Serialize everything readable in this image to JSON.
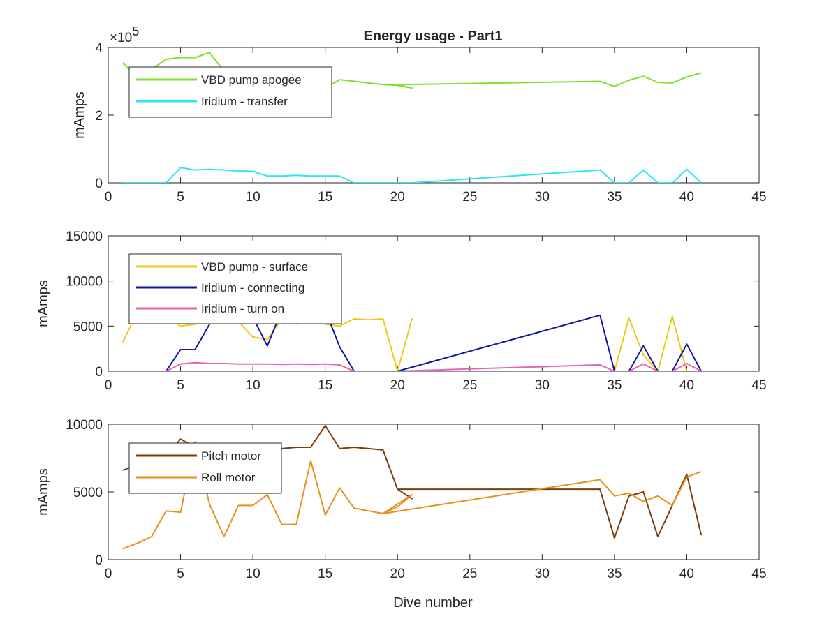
{
  "figure": {
    "title": "Energy usage - Part1",
    "xlabel": "Dive number"
  },
  "chart_data": [
    {
      "type": "line",
      "title": "Energy usage - Part1",
      "xlabel": "",
      "ylabel": "mAmps",
      "xlim": [
        0,
        45
      ],
      "ylim": [
        0,
        400000
      ],
      "xticks": [
        "0",
        "5",
        "10",
        "15",
        "20",
        "25",
        "30",
        "35",
        "40",
        "45"
      ],
      "yticks": [
        "0",
        "2",
        "4"
      ],
      "y_exponent_label": "×10",
      "y_exponent_value": "5",
      "legend_position": "top-left",
      "series": [
        {
          "name": "VBD pump apogee",
          "color": "#7ee12e",
          "x": [
            1,
            2,
            3,
            4,
            5,
            6,
            7,
            8,
            9,
            10,
            11,
            12,
            13,
            14,
            15,
            16,
            17,
            18,
            19,
            20,
            21,
            20,
            34,
            35,
            36,
            37,
            38,
            39,
            40,
            41
          ],
          "y": [
            355000,
            310000,
            335000,
            365000,
            370000,
            370000,
            385000,
            330000,
            320000,
            300000,
            295000,
            290000,
            280000,
            275000,
            280000,
            305000,
            300000,
            295000,
            290000,
            288000,
            280000,
            290000,
            300000,
            285000,
            303000,
            315000,
            297000,
            295000,
            313000,
            325000
          ]
        },
        {
          "name": "Iridium - transfer",
          "color": "#2ee6f0",
          "x": [
            1,
            2,
            3,
            4,
            5,
            6,
            7,
            8,
            9,
            10,
            11,
            12,
            13,
            14,
            15,
            16,
            17,
            18,
            19,
            20,
            21,
            34,
            35,
            36,
            37,
            38,
            39,
            40,
            41
          ],
          "y": [
            0,
            0,
            0,
            0,
            45000,
            38000,
            40000,
            38000,
            35000,
            34000,
            20000,
            20000,
            22000,
            20000,
            20000,
            20000,
            0,
            0,
            0,
            0,
            0,
            38000,
            0,
            0,
            38000,
            0,
            0,
            40000,
            0
          ]
        }
      ]
    },
    {
      "type": "line",
      "title": "",
      "xlabel": "",
      "ylabel": "mAmps",
      "xlim": [
        0,
        45
      ],
      "ylim": [
        0,
        15000
      ],
      "xticks": [
        "0",
        "5",
        "10",
        "15",
        "20",
        "25",
        "30",
        "35",
        "40",
        "45"
      ],
      "yticks": [
        "0",
        "5000",
        "10000",
        "15000"
      ],
      "legend_position": "top-left",
      "series": [
        {
          "name": "VBD pump - surface",
          "color": "#f0c818",
          "x": [
            1,
            2,
            3,
            4,
            5,
            6,
            7,
            8,
            9,
            10,
            11,
            12,
            13,
            14,
            15,
            16,
            17,
            18,
            19,
            20,
            21,
            20,
            34,
            35,
            36,
            37,
            38,
            39,
            40,
            41
          ],
          "y": [
            3200,
            6500,
            6000,
            6000,
            5000,
            5200,
            6200,
            5800,
            5500,
            3800,
            3500,
            5800,
            5200,
            5800,
            5200,
            5000,
            5800,
            5700,
            5800,
            0,
            5800,
            0,
            0,
            0,
            5900,
            1800,
            0,
            6100,
            0,
            0
          ]
        },
        {
          "name": "Iridium - connecting",
          "color": "#1216a8",
          "x": [
            1,
            2,
            3,
            4,
            5,
            6,
            7,
            8,
            9,
            10,
            11,
            12,
            13,
            14,
            15,
            16,
            17,
            18,
            19,
            20,
            34,
            35,
            36,
            37,
            38,
            39,
            40,
            41
          ],
          "y": [
            0,
            0,
            0,
            0,
            2400,
            2400,
            5200,
            6600,
            6700,
            6000,
            2800,
            6800,
            6900,
            6800,
            6800,
            2700,
            0,
            0,
            0,
            0,
            6200,
            0,
            0,
            2800,
            0,
            0,
            3000,
            0
          ]
        },
        {
          "name": "Iridium - turn on",
          "color": "#e763b6",
          "x": [
            1,
            2,
            3,
            4,
            5,
            6,
            7,
            8,
            9,
            10,
            11,
            12,
            13,
            14,
            15,
            16,
            17,
            18,
            19,
            20,
            34,
            35,
            36,
            37,
            38,
            39,
            40,
            41
          ],
          "y": [
            0,
            0,
            0,
            0,
            800,
            950,
            850,
            850,
            800,
            800,
            800,
            750,
            800,
            750,
            800,
            700,
            0,
            0,
            0,
            0,
            700,
            0,
            0,
            800,
            0,
            0,
            850,
            0
          ]
        }
      ]
    },
    {
      "type": "line",
      "title": "",
      "xlabel": "Dive number",
      "ylabel": "mAmps",
      "xlim": [
        0,
        45
      ],
      "ylim": [
        0,
        10000
      ],
      "xticks": [
        "0",
        "5",
        "10",
        "15",
        "20",
        "25",
        "30",
        "35",
        "40",
        "45"
      ],
      "yticks": [
        "0",
        "5000",
        "10000"
      ],
      "legend_position": "top-left",
      "series": [
        {
          "name": "Pitch motor",
          "color": "#7a3e0f",
          "x": [
            1,
            2,
            3,
            4,
            5,
            6,
            7,
            8,
            9,
            10,
            11,
            12,
            13,
            14,
            15,
            16,
            17,
            18,
            19,
            20,
            21,
            20,
            34,
            35,
            36,
            37,
            38,
            39,
            40,
            41
          ],
          "y": [
            6600,
            7000,
            7200,
            7600,
            8900,
            8300,
            8200,
            8300,
            8100,
            8200,
            8200,
            8200,
            8300,
            8300,
            9900,
            8200,
            8300,
            8200,
            8100,
            5200,
            4500,
            5200,
            5200,
            1600,
            4700,
            5000,
            1700,
            4000,
            6300,
            1800
          ]
        },
        {
          "name": "Roll motor",
          "color": "#e8901a",
          "x": [
            1,
            2,
            3,
            4,
            5,
            6,
            7,
            8,
            9,
            10,
            11,
            12,
            13,
            14,
            15,
            16,
            17,
            18,
            19,
            20,
            21,
            19,
            34,
            35,
            36,
            37,
            38,
            39,
            40,
            41
          ],
          "y": [
            800,
            1200,
            1700,
            3600,
            3500,
            8700,
            4100,
            1700,
            4000,
            4000,
            4800,
            2600,
            2600,
            7300,
            3300,
            5300,
            3800,
            3600,
            3400,
            3900,
            4800,
            3400,
            5900,
            4700,
            4900,
            4300,
            4700,
            4000,
            6100,
            6500
          ]
        }
      ]
    }
  ]
}
